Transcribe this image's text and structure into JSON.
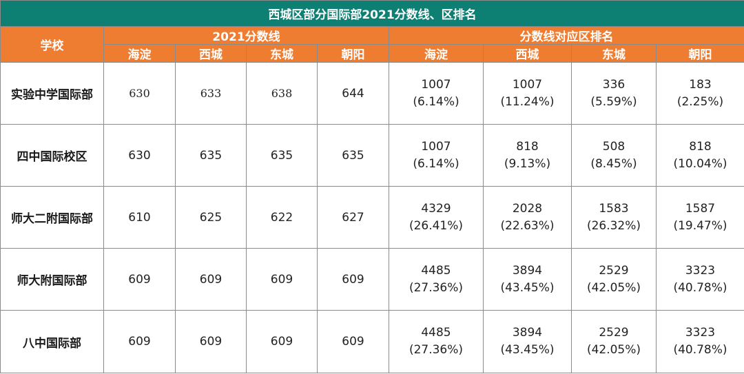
{
  "title": "西城区部分国际部2021分数线、区排名",
  "header": {
    "school": "学校",
    "group_scores": "2021分数线",
    "group_ranks": "分数线对应区排名",
    "districts": [
      "海淀",
      "西城",
      "东城",
      "朝阳"
    ]
  },
  "rows": [
    {
      "school": "实验中学国际部",
      "scores": [
        "630",
        "633",
        "638",
        "644"
      ],
      "ranks": [
        {
          "count": "1007",
          "pct": "(6.14%)"
        },
        {
          "count": "1007",
          "pct": "(11.24%)"
        },
        {
          "count": "336",
          "pct": "(5.59%)"
        },
        {
          "count": "183",
          "pct": "(2.25%)"
        }
      ]
    },
    {
      "school": "四中国际校区",
      "scores": [
        "630",
        "635",
        "635",
        "635"
      ],
      "ranks": [
        {
          "count": "1007",
          "pct": "(6.14%)"
        },
        {
          "count": "818",
          "pct": "(9.13%)"
        },
        {
          "count": "508",
          "pct": "(8.45%)"
        },
        {
          "count": "818",
          "pct": "(10.04%)"
        }
      ]
    },
    {
      "school": "师大二附国际部",
      "scores": [
        "610",
        "625",
        "622",
        "627"
      ],
      "ranks": [
        {
          "count": "4329",
          "pct": "(26.41%)"
        },
        {
          "count": "2028",
          "pct": "(22.63%)"
        },
        {
          "count": "1583",
          "pct": "(26.32%)"
        },
        {
          "count": "1587",
          "pct": "(19.47%)"
        }
      ]
    },
    {
      "school": "师大附国际部",
      "scores": [
        "609",
        "609",
        "609",
        "609"
      ],
      "ranks": [
        {
          "count": "4485",
          "pct": "(27.36%)"
        },
        {
          "count": "3894",
          "pct": "(43.45%)"
        },
        {
          "count": "2529",
          "pct": "(42.05%)"
        },
        {
          "count": "3323",
          "pct": "(40.78%)"
        }
      ]
    },
    {
      "school": "八中国际部",
      "scores": [
        "609",
        "609",
        "609",
        "609"
      ],
      "ranks": [
        {
          "count": "4485",
          "pct": "(27.36%)"
        },
        {
          "count": "3894",
          "pct": "(43.45%)"
        },
        {
          "count": "2529",
          "pct": "(42.05%)"
        },
        {
          "count": "3323",
          "pct": "(40.78%)"
        }
      ]
    }
  ],
  "colors": {
    "title_bg": "#0e7f73",
    "header_bg": "#ee7d31",
    "header_text": "#ffffff",
    "border": "#8a8a8a"
  }
}
